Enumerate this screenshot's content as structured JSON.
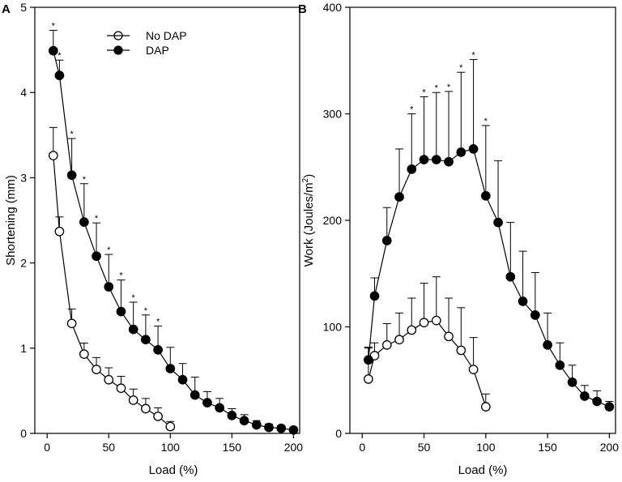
{
  "chart_data": [
    {
      "type": "line",
      "panel": "A",
      "title": "",
      "xlabel": "Load (%)",
      "ylabel": "Shortening (mm)",
      "xlim": [
        -10,
        205
      ],
      "ylim": [
        0,
        5
      ],
      "xticks": [
        0,
        50,
        100,
        150,
        200
      ],
      "yticks": [
        0,
        1,
        2,
        3,
        4,
        5
      ],
      "legend": {
        "position": "top-center"
      },
      "series": [
        {
          "name": "No DAP",
          "marker": "open-circle",
          "x": [
            5,
            10,
            20,
            30,
            40,
            50,
            60,
            70,
            80,
            90,
            100
          ],
          "y": [
            3.26,
            2.37,
            1.29,
            0.93,
            0.75,
            0.63,
            0.53,
            0.39,
            0.29,
            0.2,
            0.08
          ],
          "err": [
            0.33,
            0.17,
            0.17,
            0.13,
            0.14,
            0.14,
            0.14,
            0.13,
            0.12,
            0.1,
            0.06
          ]
        },
        {
          "name": "DAP",
          "marker": "filled-circle",
          "x": [
            5,
            10,
            20,
            30,
            40,
            50,
            60,
            70,
            80,
            90,
            100,
            110,
            120,
            130,
            140,
            150,
            160,
            170,
            180,
            190,
            200
          ],
          "y": [
            4.49,
            4.2,
            3.03,
            2.48,
            2.08,
            1.72,
            1.43,
            1.22,
            1.1,
            0.98,
            0.76,
            0.63,
            0.45,
            0.36,
            0.3,
            0.21,
            0.15,
            0.1,
            0.07,
            0.06,
            0.04
          ],
          "err": [
            0.24,
            0.18,
            0.43,
            0.45,
            0.39,
            0.38,
            0.37,
            0.32,
            0.29,
            0.28,
            0.25,
            0.19,
            0.21,
            0.13,
            0.11,
            0.08,
            0.07,
            0.05,
            0.04,
            0.03,
            0.02
          ]
        }
      ],
      "significance": {
        "symbol": "*",
        "x": [
          5,
          10,
          20,
          30,
          40,
          50,
          60,
          70,
          80,
          90
        ],
        "series": "DAP"
      }
    },
    {
      "type": "line",
      "panel": "B",
      "title": "",
      "xlabel": "Load (%)",
      "ylabel_prefix": "Work (Joules/m",
      "ylabel_sup": "2",
      "ylabel_suffix": ")",
      "xlim": [
        -10,
        205
      ],
      "ylim": [
        0,
        400
      ],
      "xticks": [
        0,
        50,
        100,
        150,
        200
      ],
      "yticks": [
        0,
        100,
        200,
        300,
        400
      ],
      "series": [
        {
          "name": "No DAP",
          "marker": "open-circle",
          "x": [
            5,
            10,
            20,
            30,
            40,
            50,
            60,
            70,
            80,
            90,
            100
          ],
          "y": [
            51,
            73,
            83,
            88,
            97,
            104,
            106,
            91,
            78,
            60,
            25
          ],
          "err": [
            29,
            12,
            20,
            25,
            30,
            37,
            41,
            36,
            40,
            30,
            12
          ]
        },
        {
          "name": "DAP",
          "marker": "filled-circle",
          "x": [
            5,
            10,
            20,
            30,
            40,
            50,
            60,
            70,
            80,
            90,
            100,
            110,
            120,
            130,
            140,
            150,
            160,
            170,
            180,
            190,
            200
          ],
          "y": [
            69,
            129,
            181,
            222,
            248,
            257,
            257,
            255,
            264,
            267,
            223,
            198,
            147,
            124,
            111,
            83,
            64,
            48,
            35,
            30,
            25
          ],
          "err": [
            12,
            17,
            31,
            45,
            52,
            59,
            63,
            66,
            75,
            84,
            66,
            58,
            51,
            47,
            40,
            30,
            21,
            16,
            10,
            10,
            5
          ]
        }
      ],
      "significance": {
        "symbol": "*",
        "x": [
          40,
          50,
          60,
          70,
          80,
          90,
          100
        ],
        "series": "DAP"
      }
    }
  ],
  "panel_a_letter": "A",
  "panel_b_letter": "B",
  "legend_no_dap": "No DAP",
  "legend_dap": "DAP"
}
